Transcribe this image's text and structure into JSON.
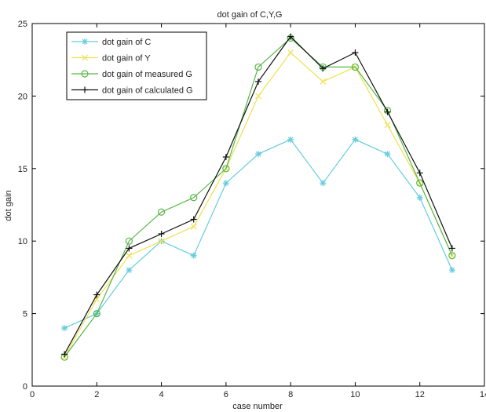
{
  "chart_data": {
    "type": "line",
    "title": "dot gain of C,Y,G",
    "xlabel": "case number",
    "ylabel": "dot gain",
    "xlim": [
      0,
      14
    ],
    "ylim": [
      0,
      25
    ],
    "xticks": [
      0,
      2,
      4,
      6,
      8,
      10,
      12,
      14
    ],
    "yticks": [
      0,
      5,
      10,
      15,
      20,
      25
    ],
    "grid": false,
    "legend_position": "top-left",
    "x": [
      1,
      2,
      3,
      4,
      5,
      6,
      7,
      8,
      9,
      10,
      11,
      12,
      13
    ],
    "series": [
      {
        "name": "dot gain of C",
        "color": "#66ccdd",
        "marker": "asterisk",
        "values": [
          4,
          5,
          8,
          10,
          9,
          14,
          16,
          17,
          14,
          17,
          16,
          13,
          8
        ]
      },
      {
        "name": "dot gain of Y",
        "color": "#f0e050",
        "marker": "x",
        "values": [
          2,
          6,
          9,
          10,
          11,
          15,
          20,
          23,
          21,
          22,
          18,
          14,
          9
        ]
      },
      {
        "name": "dot gain of measured G",
        "color": "#55b845",
        "marker": "circle",
        "values": [
          2,
          5,
          10,
          12,
          13,
          15,
          22,
          24,
          22,
          22,
          19,
          14,
          9
        ]
      },
      {
        "name": "dot gain of calculated G",
        "color": "#111111",
        "marker": "plus",
        "values": [
          2.2,
          6.3,
          9.5,
          10.5,
          11.5,
          15.8,
          21,
          24.1,
          21.9,
          23,
          18.9,
          14.7,
          9.5
        ]
      }
    ]
  }
}
